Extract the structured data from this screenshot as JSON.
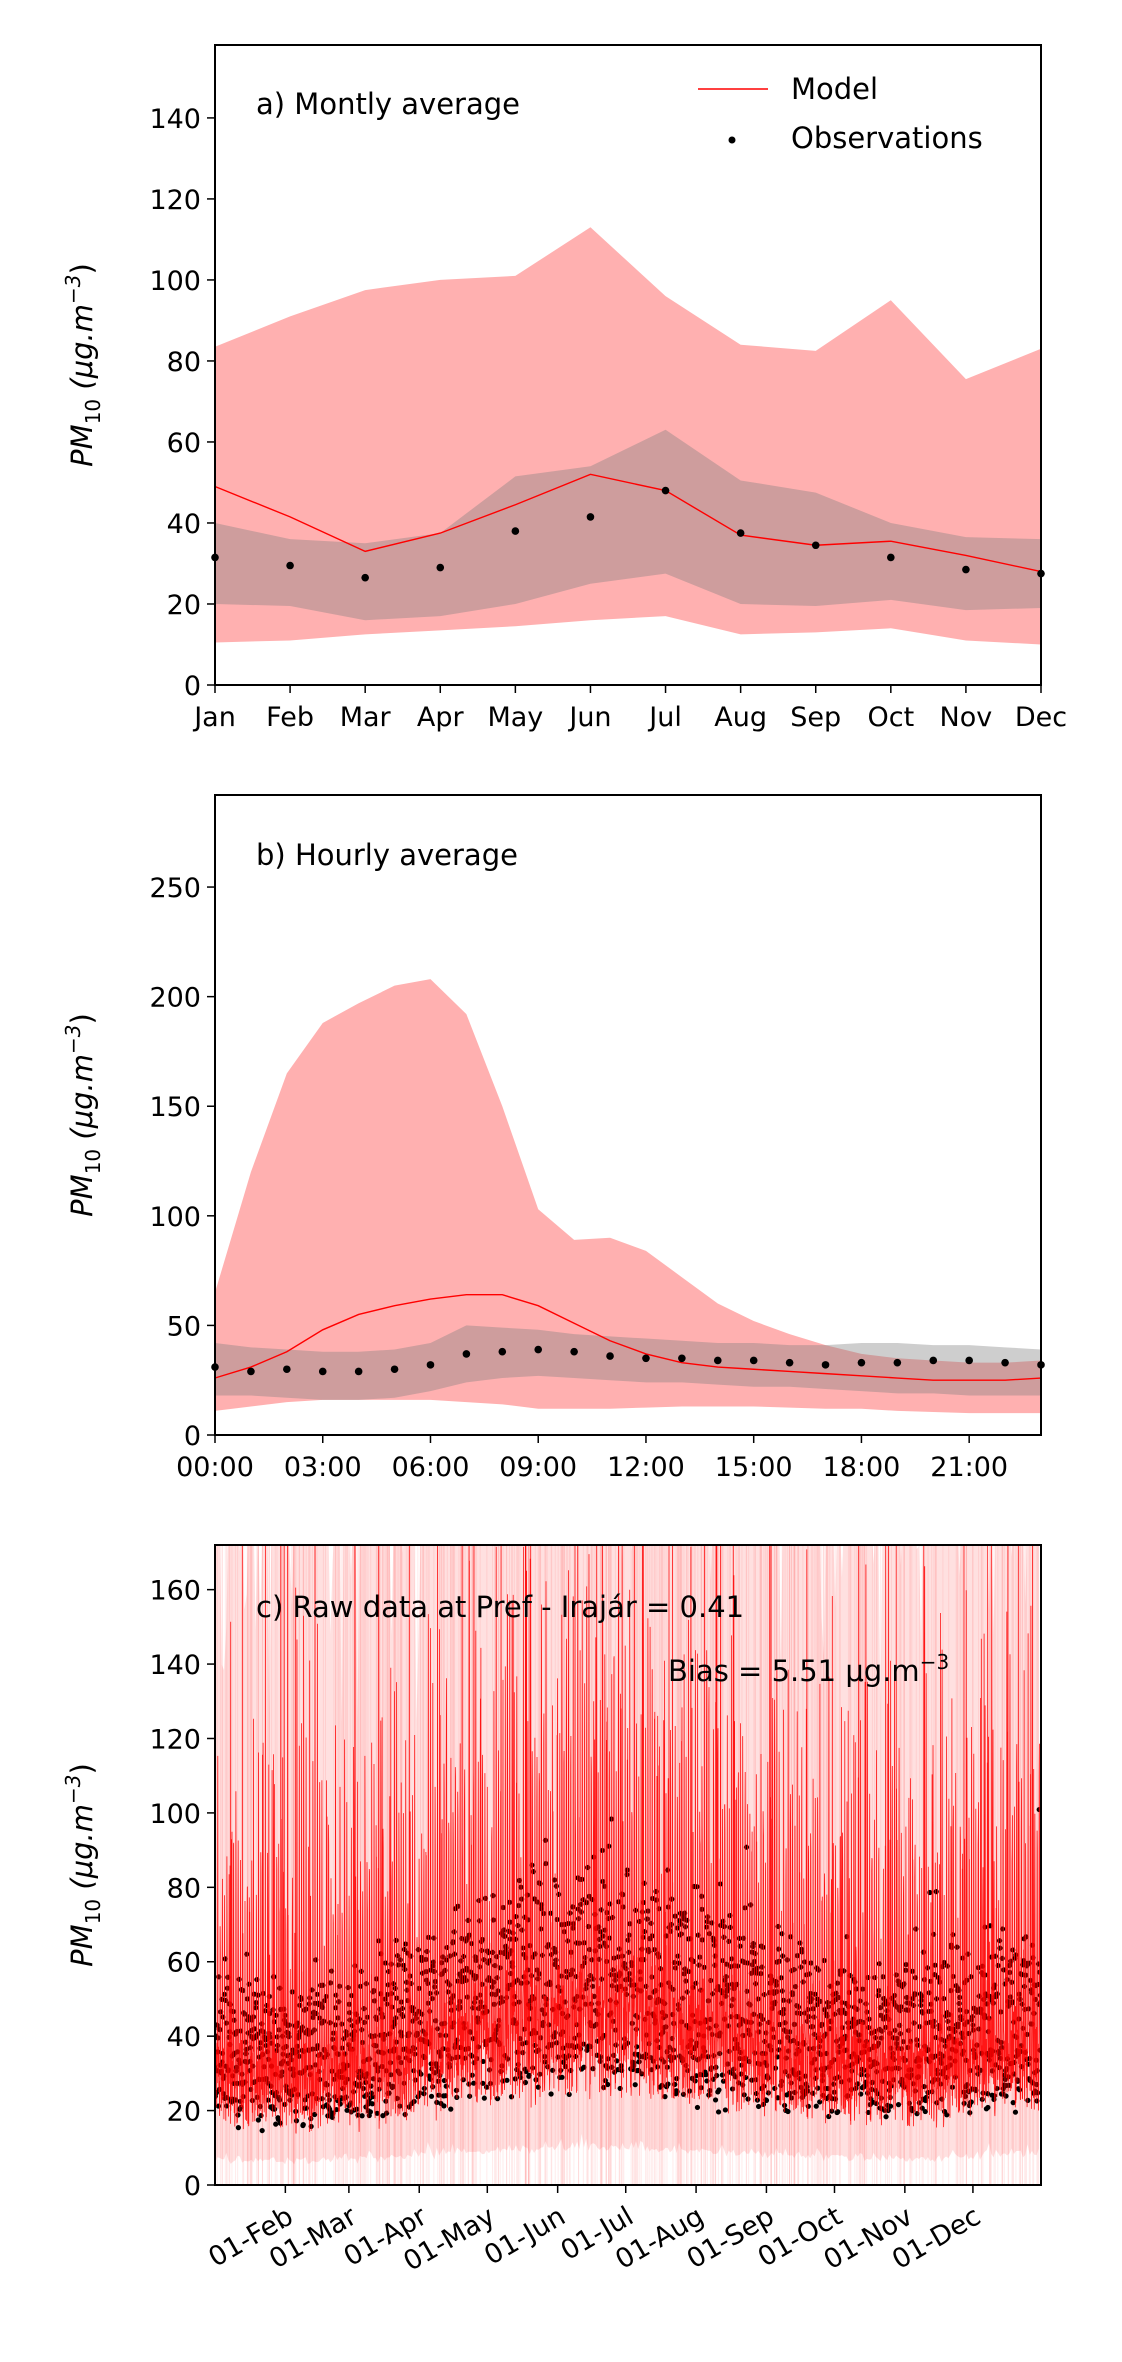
{
  "chart_data": [
    {
      "type": "line",
      "title": "a) Montly average",
      "ylabel": "PM",
      "ylabel_sub": "10",
      "ylabel_unit": "(μg.m",
      "ylabel_sup": "−3",
      "ylim": [
        0,
        158
      ],
      "yticks": [
        0,
        20,
        40,
        60,
        80,
        100,
        120,
        140
      ],
      "x": [
        "Jan",
        "Feb",
        "Mar",
        "Apr",
        "May",
        "Jun",
        "Jul",
        "Aug",
        "Sep",
        "Oct",
        "Nov",
        "Dec"
      ],
      "legend": {
        "placement": "top-right",
        "model_label": "Model",
        "obs_label": "Observations"
      },
      "series": [
        {
          "name": "Model",
          "values": [
            49,
            41.5,
            33,
            37.5,
            44.5,
            52,
            48,
            37,
            34.5,
            35.5,
            32,
            28
          ]
        },
        {
          "name": "Observations",
          "values": [
            31.5,
            29.5,
            26.5,
            29,
            38,
            41.5,
            48,
            37.5,
            34.5,
            31.5,
            28.5,
            27.5
          ]
        }
      ],
      "model_band": {
        "upper": [
          83.5,
          91,
          97.5,
          100,
          101,
          113,
          96,
          84,
          82.5,
          95,
          75.5,
          83
        ],
        "lower": [
          10.5,
          11,
          12.5,
          13.5,
          14.5,
          16,
          17,
          12.5,
          13,
          14,
          11,
          10
        ]
      },
      "obs_band": {
        "upper": [
          40,
          36,
          35,
          37.5,
          51.5,
          54,
          63,
          50.5,
          47.5,
          40,
          36.5,
          36
        ],
        "lower": [
          20,
          19.5,
          16,
          17,
          20,
          25,
          27.5,
          20,
          19.5,
          21,
          18.5,
          19
        ]
      }
    },
    {
      "type": "line",
      "title": "b) Hourly average",
      "ylabel": "PM",
      "ylabel_sub": "10",
      "ylabel_unit": "(μg.m",
      "ylabel_sup": "−3",
      "ylim": [
        0,
        292
      ],
      "yticks": [
        0,
        50,
        100,
        150,
        200,
        250
      ],
      "xlim": [
        0,
        23
      ],
      "xticks": [
        0,
        3,
        6,
        9,
        12,
        15,
        18,
        21
      ],
      "xticklabels": [
        "00:00",
        "03:00",
        "06:00",
        "09:00",
        "12:00",
        "15:00",
        "18:00",
        "21:00"
      ],
      "series": [
        {
          "name": "Model",
          "values": [
            26,
            31,
            38,
            48,
            55,
            59,
            62,
            64,
            64,
            59,
            51,
            43,
            37,
            33,
            31,
            30,
            29,
            28,
            27,
            26,
            25,
            25,
            25,
            26
          ]
        },
        {
          "name": "Observations",
          "values": [
            31,
            29,
            30,
            29,
            29,
            30,
            32,
            37,
            38,
            39,
            38,
            36,
            35,
            35,
            34,
            34,
            33,
            32,
            33,
            33,
            34,
            34,
            33,
            32
          ]
        }
      ],
      "model_band": {
        "upper": [
          65,
          120,
          165,
          188,
          197,
          205,
          208,
          192,
          150,
          103,
          89,
          90,
          84,
          72,
          60,
          52,
          46,
          41,
          37,
          35,
          34,
          33,
          33,
          34
        ],
        "lower": [
          11,
          13,
          15,
          16,
          16,
          16,
          16,
          15,
          14,
          12,
          12,
          12,
          12.5,
          13,
          13,
          13,
          12.5,
          12,
          12,
          11,
          10.5,
          10,
          10,
          10
        ]
      },
      "obs_band": {
        "upper": [
          42,
          40,
          39,
          38,
          38,
          39,
          42,
          50,
          49,
          48,
          46,
          45,
          44,
          43,
          42,
          42,
          41,
          41,
          42,
          42,
          41,
          41,
          40,
          39
        ],
        "lower": [
          18,
          18,
          17,
          16,
          16,
          17,
          20,
          24,
          26,
          27,
          26,
          25,
          24,
          24,
          23,
          22,
          22,
          21,
          20,
          19,
          19,
          18,
          18,
          18
        ]
      }
    },
    {
      "type": "scatter",
      "title": "c) Raw data at Pref - Irajár = 0.41",
      "bias_label": "Bias = 5.51 μg.m",
      "bias_sup": "−3",
      "ylabel": "PM",
      "ylabel_sub": "10",
      "ylabel_unit": "(μg.m",
      "ylabel_sup": "−3",
      "ylim": [
        0,
        172
      ],
      "yticks": [
        0,
        20,
        40,
        60,
        80,
        100,
        120,
        140,
        160
      ],
      "xticks_day_of_year": [
        31,
        59,
        90,
        120,
        151,
        181,
        212,
        243,
        273,
        304,
        334
      ],
      "xticklabels": [
        "01-Feb",
        "01-Mar",
        "01-Apr",
        "01-May",
        "01-Jun",
        "01-Jul",
        "01-Aug",
        "01-Sep",
        "01-Oct",
        "01-Nov",
        "01-Dec"
      ],
      "series": [
        {
          "name": "Model",
          "description_values": "hourly simulated PM10 for one year"
        },
        {
          "name": "Observations",
          "description_values": "hourly observed PM10 for one year"
        }
      ]
    }
  ]
}
